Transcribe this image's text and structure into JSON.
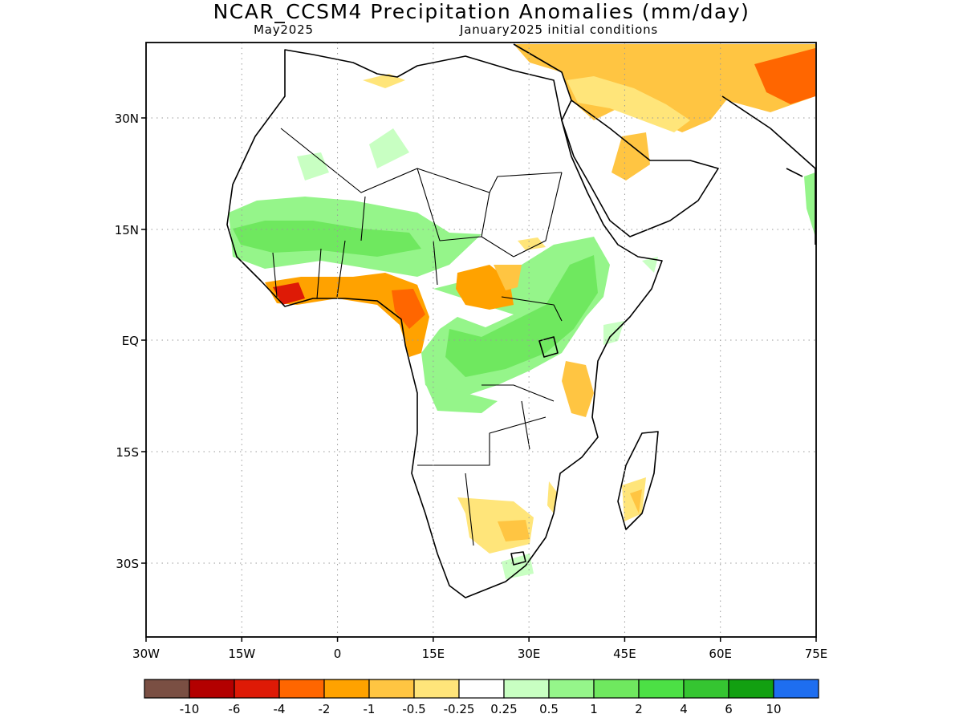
{
  "title": "NCAR_CCSM4 Precipitation Anomalies (mm/day)",
  "subtitle_left": "May2025",
  "subtitle_right": "January2025 initial conditions",
  "map": {
    "lon_range": [
      -30,
      75
    ],
    "lat_range": [
      -46,
      46
    ],
    "x_ticks": [
      "30W",
      "15W",
      "0",
      "15E",
      "30E",
      "45E",
      "60E",
      "75E"
    ],
    "y_ticks": [
      "30N",
      "15N",
      "EQ",
      "15S",
      "30S"
    ],
    "grid": "dotted"
  },
  "colorbar": {
    "colors": [
      "#7a4f43",
      "#b30000",
      "#de1a06",
      "#ff6600",
      "#ffa200",
      "#ffc542",
      "#ffe57a",
      "#ffffff",
      "#c8ffc2",
      "#95f58a",
      "#6fe85f",
      "#4ce045",
      "#35c531",
      "#12a011",
      "#1e6ef0"
    ],
    "labels": [
      "-10",
      "-6",
      "-4",
      "-2",
      "-1",
      "-0.5",
      "-0.25",
      "0.25",
      "0.5",
      "1",
      "2",
      "4",
      "6",
      "10"
    ]
  }
}
